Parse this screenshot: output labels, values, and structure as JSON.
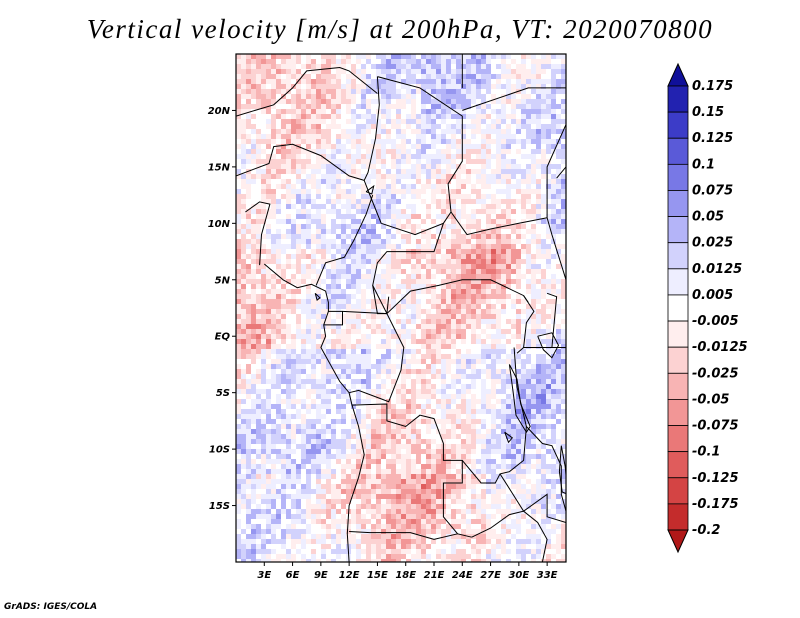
{
  "title": "Vertical velocity [m/s] at 200hPa, VT: 2020070800",
  "credit": "GrADS: IGES/COLA",
  "map": {
    "lat_labels": [
      "20N",
      "15N",
      "10N",
      "5N",
      "EQ",
      "5S",
      "10S",
      "15S"
    ],
    "lat_values": [
      20,
      15,
      10,
      5,
      0,
      -5,
      -10,
      -15
    ],
    "lon_labels": [
      "3E",
      "6E",
      "9E",
      "12E",
      "15E",
      "18E",
      "21E",
      "24E",
      "27E",
      "30E",
      "33E"
    ],
    "lon_values": [
      3,
      6,
      9,
      12,
      15,
      18,
      21,
      24,
      27,
      30,
      33
    ],
    "lon_range": [
      0,
      35
    ],
    "lat_range": [
      -20,
      25
    ]
  },
  "colorbar": {
    "labels": [
      "0.175",
      "0.15",
      "0.125",
      "0.1",
      "0.075",
      "0.05",
      "0.025",
      "0.0125",
      "0.005",
      "-0.005",
      "-0.0125",
      "-0.025",
      "-0.05",
      "-0.075",
      "-0.1",
      "-0.125",
      "-0.175",
      "-0.2"
    ],
    "colors": [
      "#b01818",
      "#c42c2c",
      "#d44444",
      "#e05c5c",
      "#ea7878",
      "#f29696",
      "#f8b4b4",
      "#fcd2d2",
      "#ffeeee",
      "#ffffff",
      "#eeeeff",
      "#d2d2fc",
      "#b4b4f8",
      "#9696f0",
      "#7878e6",
      "#5a5ad8",
      "#3c3cc8",
      "#2222b0",
      "#10109a"
    ]
  }
}
